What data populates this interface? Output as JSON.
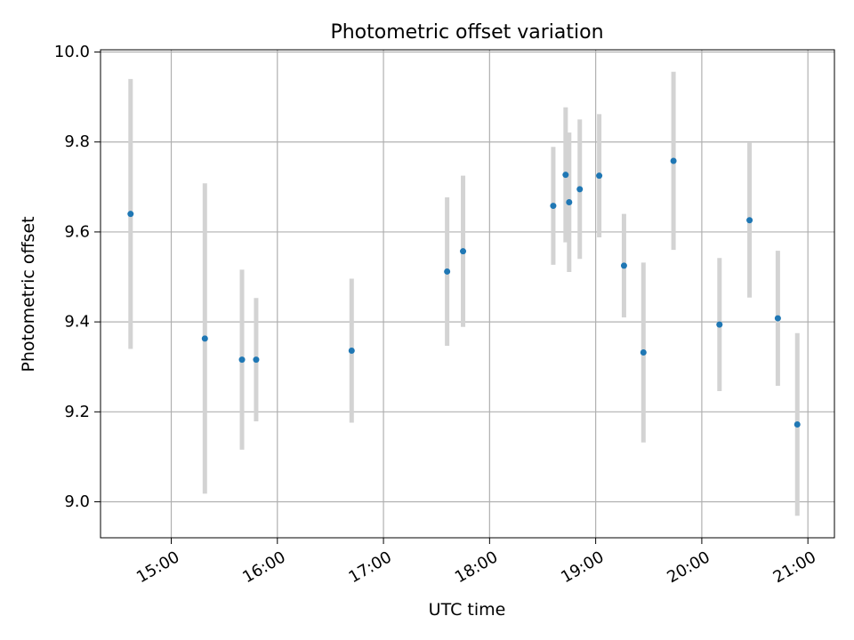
{
  "chart_data": {
    "type": "scatter",
    "title": "Photometric offset variation",
    "xlabel": "UTC time",
    "ylabel": "Photometric offset",
    "xlim": [
      "14:20",
      "21:15"
    ],
    "ylim": [
      8.92,
      10.005
    ],
    "xticks": [
      "15:00",
      "16:00",
      "17:00",
      "18:00",
      "19:00",
      "20:00",
      "21:00"
    ],
    "yticks": [
      9.0,
      9.2,
      9.4,
      9.6,
      9.8,
      10.0
    ],
    "ytick_labels": [
      "9.0",
      "9.2",
      "9.4",
      "9.6",
      "9.8",
      "10.0"
    ],
    "grid": true,
    "colors": {
      "point": "#1f77b4",
      "errorbar": "#d3d3d3",
      "grid": "#b0b0b0"
    },
    "series": [
      {
        "x": [
          "14:37",
          "15:19",
          "15:40",
          "15:48",
          "16:42",
          "17:36",
          "17:45",
          "18:36",
          "18:43",
          "18:45",
          "18:51",
          "19:02",
          "19:16",
          "19:27",
          "19:44",
          "20:10",
          "20:27",
          "20:43",
          "20:54"
        ],
        "y": [
          9.64,
          9.363,
          9.316,
          9.316,
          9.336,
          9.512,
          9.557,
          9.658,
          9.727,
          9.666,
          9.695,
          9.725,
          9.525,
          9.332,
          9.758,
          9.394,
          9.626,
          9.408,
          9.172
        ],
        "yerr": [
          0.3,
          0.345,
          0.2,
          0.137,
          0.16,
          0.165,
          0.168,
          0.131,
          0.15,
          0.155,
          0.155,
          0.137,
          0.115,
          0.2,
          0.198,
          0.148,
          0.172,
          0.15,
          0.203
        ]
      }
    ]
  }
}
